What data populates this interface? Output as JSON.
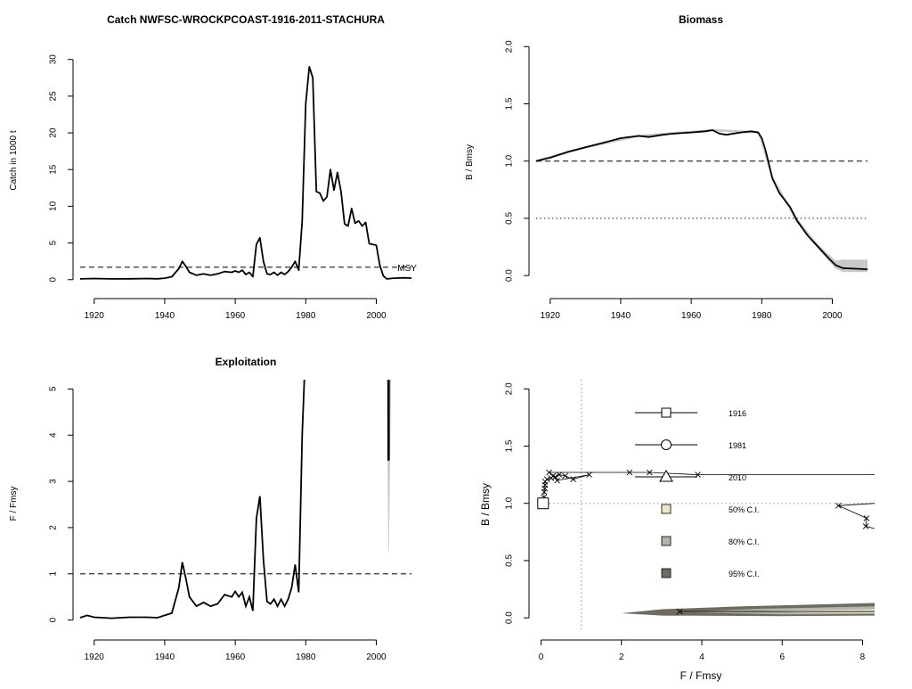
{
  "chart_data": [
    {
      "id": "catch",
      "type": "line",
      "title": "Catch NWFSC-WROCKPCOAST-1916-2011-STACHURA",
      "xlabel": "",
      "ylabel": "Catch in 1000 t",
      "xlim": [
        1914,
        2012
      ],
      "ylim": [
        -1,
        33
      ],
      "xticks": [
        1920,
        1940,
        1960,
        1980,
        2000
      ],
      "yticks": [
        0,
        5,
        10,
        15,
        20,
        25,
        30
      ],
      "reference_line": {
        "value": 1.7,
        "style": "dashed",
        "label": "MSY"
      },
      "series": [
        {
          "values": [
            [
              1916,
              0.1
            ],
            [
              1920,
              0.15
            ],
            [
              1925,
              0.1
            ],
            [
              1930,
              0.12
            ],
            [
              1935,
              0.15
            ],
            [
              1938,
              0.12
            ],
            [
              1940,
              0.2
            ],
            [
              1942,
              0.4
            ],
            [
              1944,
              1.5
            ],
            [
              1945,
              2.5
            ],
            [
              1946,
              1.8
            ],
            [
              1947,
              1.0
            ],
            [
              1949,
              0.6
            ],
            [
              1951,
              0.8
            ],
            [
              1953,
              0.6
            ],
            [
              1955,
              0.8
            ],
            [
              1957,
              1.1
            ],
            [
              1959,
              1.0
            ],
            [
              1960,
              1.2
            ],
            [
              1961,
              1.0
            ],
            [
              1962,
              1.3
            ],
            [
              1963,
              0.7
            ],
            [
              1964,
              1.0
            ],
            [
              1965,
              0.4
            ],
            [
              1966,
              4.8
            ],
            [
              1967,
              5.7
            ],
            [
              1968,
              2.5
            ],
            [
              1969,
              0.8
            ],
            [
              1970,
              0.7
            ],
            [
              1971,
              1.0
            ],
            [
              1972,
              0.6
            ],
            [
              1973,
              1.0
            ],
            [
              1974,
              0.7
            ],
            [
              1975,
              1.1
            ],
            [
              1976,
              1.7
            ],
            [
              1977,
              2.5
            ],
            [
              1978,
              1.3
            ],
            [
              1979,
              8.0
            ],
            [
              1980,
              24.0
            ],
            [
              1981,
              29.0
            ],
            [
              1982,
              27.5
            ],
            [
              1983,
              12.0
            ],
            [
              1984,
              11.8
            ],
            [
              1985,
              10.7
            ],
            [
              1986,
              11.3
            ],
            [
              1987,
              15.0
            ],
            [
              1988,
              12.2
            ],
            [
              1989,
              14.6
            ],
            [
              1990,
              12.0
            ],
            [
              1991,
              7.6
            ],
            [
              1992,
              7.3
            ],
            [
              1993,
              9.7
            ],
            [
              1994,
              7.7
            ],
            [
              1995,
              8.0
            ],
            [
              1996,
              7.3
            ],
            [
              1997,
              7.8
            ],
            [
              1998,
              4.9
            ],
            [
              2000,
              4.7
            ],
            [
              2001,
              2.0
            ],
            [
              2002,
              0.5
            ],
            [
              2003,
              0.1
            ],
            [
              2005,
              0.2
            ],
            [
              2008,
              0.25
            ],
            [
              2010,
              0.2
            ]
          ]
        }
      ]
    },
    {
      "id": "biomass",
      "type": "line",
      "title": "Biomass",
      "xlabel": "",
      "ylabel": "B / Bmsy",
      "xlim": [
        1914,
        2012
      ],
      "ylim": [
        -0.1,
        2.08
      ],
      "xticks": [
        1920,
        1940,
        1960,
        1980,
        2000
      ],
      "yticks": [
        "0.0",
        "0.5",
        "1.0",
        "1.5",
        "2.0"
      ],
      "reference_lines": [
        {
          "value": 1.0,
          "style": "dashed"
        },
        {
          "value": 0.5,
          "style": "dotted"
        }
      ],
      "series": [
        {
          "values": [
            [
              1916,
              1.0
            ],
            [
              1920,
              1.03
            ],
            [
              1925,
              1.08
            ],
            [
              1930,
              1.12
            ],
            [
              1935,
              1.16
            ],
            [
              1940,
              1.2
            ],
            [
              1945,
              1.22
            ],
            [
              1948,
              1.21
            ],
            [
              1952,
              1.23
            ],
            [
              1955,
              1.24
            ],
            [
              1960,
              1.25
            ],
            [
              1964,
              1.26
            ],
            [
              1966,
              1.27
            ],
            [
              1968,
              1.24
            ],
            [
              1970,
              1.23
            ],
            [
              1974,
              1.25
            ],
            [
              1977,
              1.26
            ],
            [
              1979,
              1.25
            ],
            [
              1980,
              1.2
            ],
            [
              1981,
              1.1
            ],
            [
              1982,
              0.98
            ],
            [
              1983,
              0.85
            ],
            [
              1985,
              0.72
            ],
            [
              1988,
              0.6
            ],
            [
              1990,
              0.48
            ],
            [
              1993,
              0.35
            ],
            [
              1996,
              0.25
            ],
            [
              1999,
              0.15
            ],
            [
              2001,
              0.09
            ],
            [
              2003,
              0.065
            ],
            [
              2006,
              0.06
            ],
            [
              2010,
              0.055
            ]
          ]
        }
      ],
      "ci_band": {
        "lower": [
          [
            1916,
            0.99
          ],
          [
            1930,
            1.11
          ],
          [
            1945,
            1.21
          ],
          [
            1966,
            1.26
          ],
          [
            1979,
            1.24
          ],
          [
            1983,
            0.83
          ],
          [
            1990,
            0.46
          ],
          [
            1996,
            0.23
          ],
          [
            2001,
            0.06
          ],
          [
            2003,
            0.03
          ],
          [
            2010,
            0.03
          ]
        ],
        "upper": [
          [
            1916,
            1.01
          ],
          [
            1930,
            1.13
          ],
          [
            1945,
            1.23
          ],
          [
            1966,
            1.28
          ],
          [
            1979,
            1.26
          ],
          [
            1983,
            0.87
          ],
          [
            1990,
            0.5
          ],
          [
            1996,
            0.27
          ],
          [
            2001,
            0.13
          ],
          [
            2003,
            0.14
          ],
          [
            2010,
            0.14
          ]
        ]
      }
    },
    {
      "id": "exploitation",
      "type": "line",
      "title": "Exploitation",
      "xlabel": "",
      "ylabel": "F / Fmsy",
      "xlim": [
        1914,
        2012
      ],
      "ylim": [
        -0.2,
        5.2
      ],
      "xticks": [
        1920,
        1940,
        1960,
        1980,
        2000
      ],
      "yticks": [
        0,
        1,
        2,
        3,
        4,
        5
      ],
      "reference_line": {
        "value": 1.0,
        "style": "dashed"
      },
      "series": [
        {
          "values": [
            [
              1916,
              0.05
            ],
            [
              1918,
              0.1
            ],
            [
              1920,
              0.06
            ],
            [
              1925,
              0.04
            ],
            [
              1930,
              0.06
            ],
            [
              1935,
              0.06
            ],
            [
              1938,
              0.05
            ],
            [
              1940,
              0.1
            ],
            [
              1942,
              0.15
            ],
            [
              1944,
              0.7
            ],
            [
              1945,
              1.25
            ],
            [
              1946,
              0.9
            ],
            [
              1947,
              0.5
            ],
            [
              1949,
              0.3
            ],
            [
              1951,
              0.38
            ],
            [
              1953,
              0.3
            ],
            [
              1955,
              0.35
            ],
            [
              1957,
              0.55
            ],
            [
              1959,
              0.5
            ],
            [
              1960,
              0.62
            ],
            [
              1961,
              0.5
            ],
            [
              1962,
              0.6
            ],
            [
              1963,
              0.3
            ],
            [
              1964,
              0.5
            ],
            [
              1965,
              0.2
            ],
            [
              1966,
              2.2
            ],
            [
              1967,
              2.68
            ],
            [
              1968,
              1.3
            ],
            [
              1969,
              0.4
            ],
            [
              1970,
              0.35
            ],
            [
              1971,
              0.45
            ],
            [
              1972,
              0.3
            ],
            [
              1973,
              0.45
            ],
            [
              1974,
              0.3
            ],
            [
              1975,
              0.45
            ],
            [
              1976,
              0.7
            ],
            [
              1977,
              1.2
            ],
            [
              1978,
              0.6
            ],
            [
              1979,
              4.0
            ],
            [
              1979.6,
              5.2
            ]
          ]
        },
        {
          "values": [
            [
              2003.5,
              5.2
            ],
            [
              2003.5,
              3.45
            ]
          ]
        }
      ]
    },
    {
      "id": "kobe",
      "type": "scatter",
      "title": "",
      "xlabel": "F / Fmsy",
      "ylabel": "B / Bmsy",
      "xlim": [
        -0.3,
        8.3
      ],
      "ylim": [
        -0.1,
        2.08
      ],
      "xticks": [
        0,
        2,
        4,
        6,
        8
      ],
      "yticks": [
        "0.0",
        "0.5",
        "1.0",
        "1.5",
        "2.0"
      ],
      "vline": 1.0,
      "hline": 1.0,
      "legend": [
        {
          "label": "1916",
          "symbol": "square"
        },
        {
          "label": "1981",
          "symbol": "circle"
        },
        {
          "label": "2010",
          "symbol": "triangle"
        },
        {
          "label": "50% C.I.",
          "color": "#ECE7C9"
        },
        {
          "label": "80% C.I.",
          "color": "#B3B3AD"
        },
        {
          "label": "95% C.I.",
          "color": "#6E6C5E"
        }
      ],
      "points": [
        [
          0.05,
          1.0
        ],
        [
          0.07,
          1.05
        ],
        [
          0.08,
          1.1
        ],
        [
          0.09,
          1.13
        ],
        [
          0.1,
          1.16
        ],
        [
          0.1,
          1.19
        ],
        [
          0.15,
          1.21
        ],
        [
          0.25,
          1.22
        ],
        [
          0.3,
          1.24
        ],
        [
          0.35,
          1.23
        ],
        [
          0.45,
          1.25
        ],
        [
          0.6,
          1.24
        ],
        [
          0.8,
          1.21
        ],
        [
          1.2,
          1.25
        ],
        [
          0.4,
          1.2
        ],
        [
          0.2,
          1.27
        ],
        [
          2.2,
          1.27
        ],
        [
          2.7,
          1.27
        ],
        [
          3.9,
          1.25
        ],
        [
          8.3,
          1.25
        ],
        [
          8.3,
          1.0
        ],
        [
          7.4,
          0.98
        ],
        [
          8.1,
          0.87
        ],
        [
          8.08,
          0.8
        ],
        [
          8.3,
          0.78
        ],
        [
          3.45,
          0.055
        ],
        [
          8.3,
          0.055
        ]
      ],
      "ci_95": [
        [
          2.0,
          0.04
        ],
        [
          3.0,
          0.075
        ],
        [
          5.0,
          0.1
        ],
        [
          8.3,
          0.13
        ],
        [
          8.3,
          0.02
        ],
        [
          6.0,
          0.015
        ],
        [
          3.0,
          0.02
        ]
      ],
      "ci_80": [
        [
          3.5,
          0.05
        ],
        [
          5.5,
          0.08
        ],
        [
          8.3,
          0.1
        ],
        [
          8.3,
          0.035
        ],
        [
          6.0,
          0.03
        ]
      ],
      "ci_50": [
        [
          5.5,
          0.06
        ],
        [
          8.3,
          0.075
        ],
        [
          8.3,
          0.04
        ],
        [
          6.5,
          0.045
        ]
      ]
    }
  ],
  "colors": {
    "line": "#000000",
    "band": "#C8C8C8",
    "ref": "#333333",
    "ci50": "#ECE7C9",
    "ci80": "#B3B3AD",
    "ci95": "#6E6C5E"
  }
}
